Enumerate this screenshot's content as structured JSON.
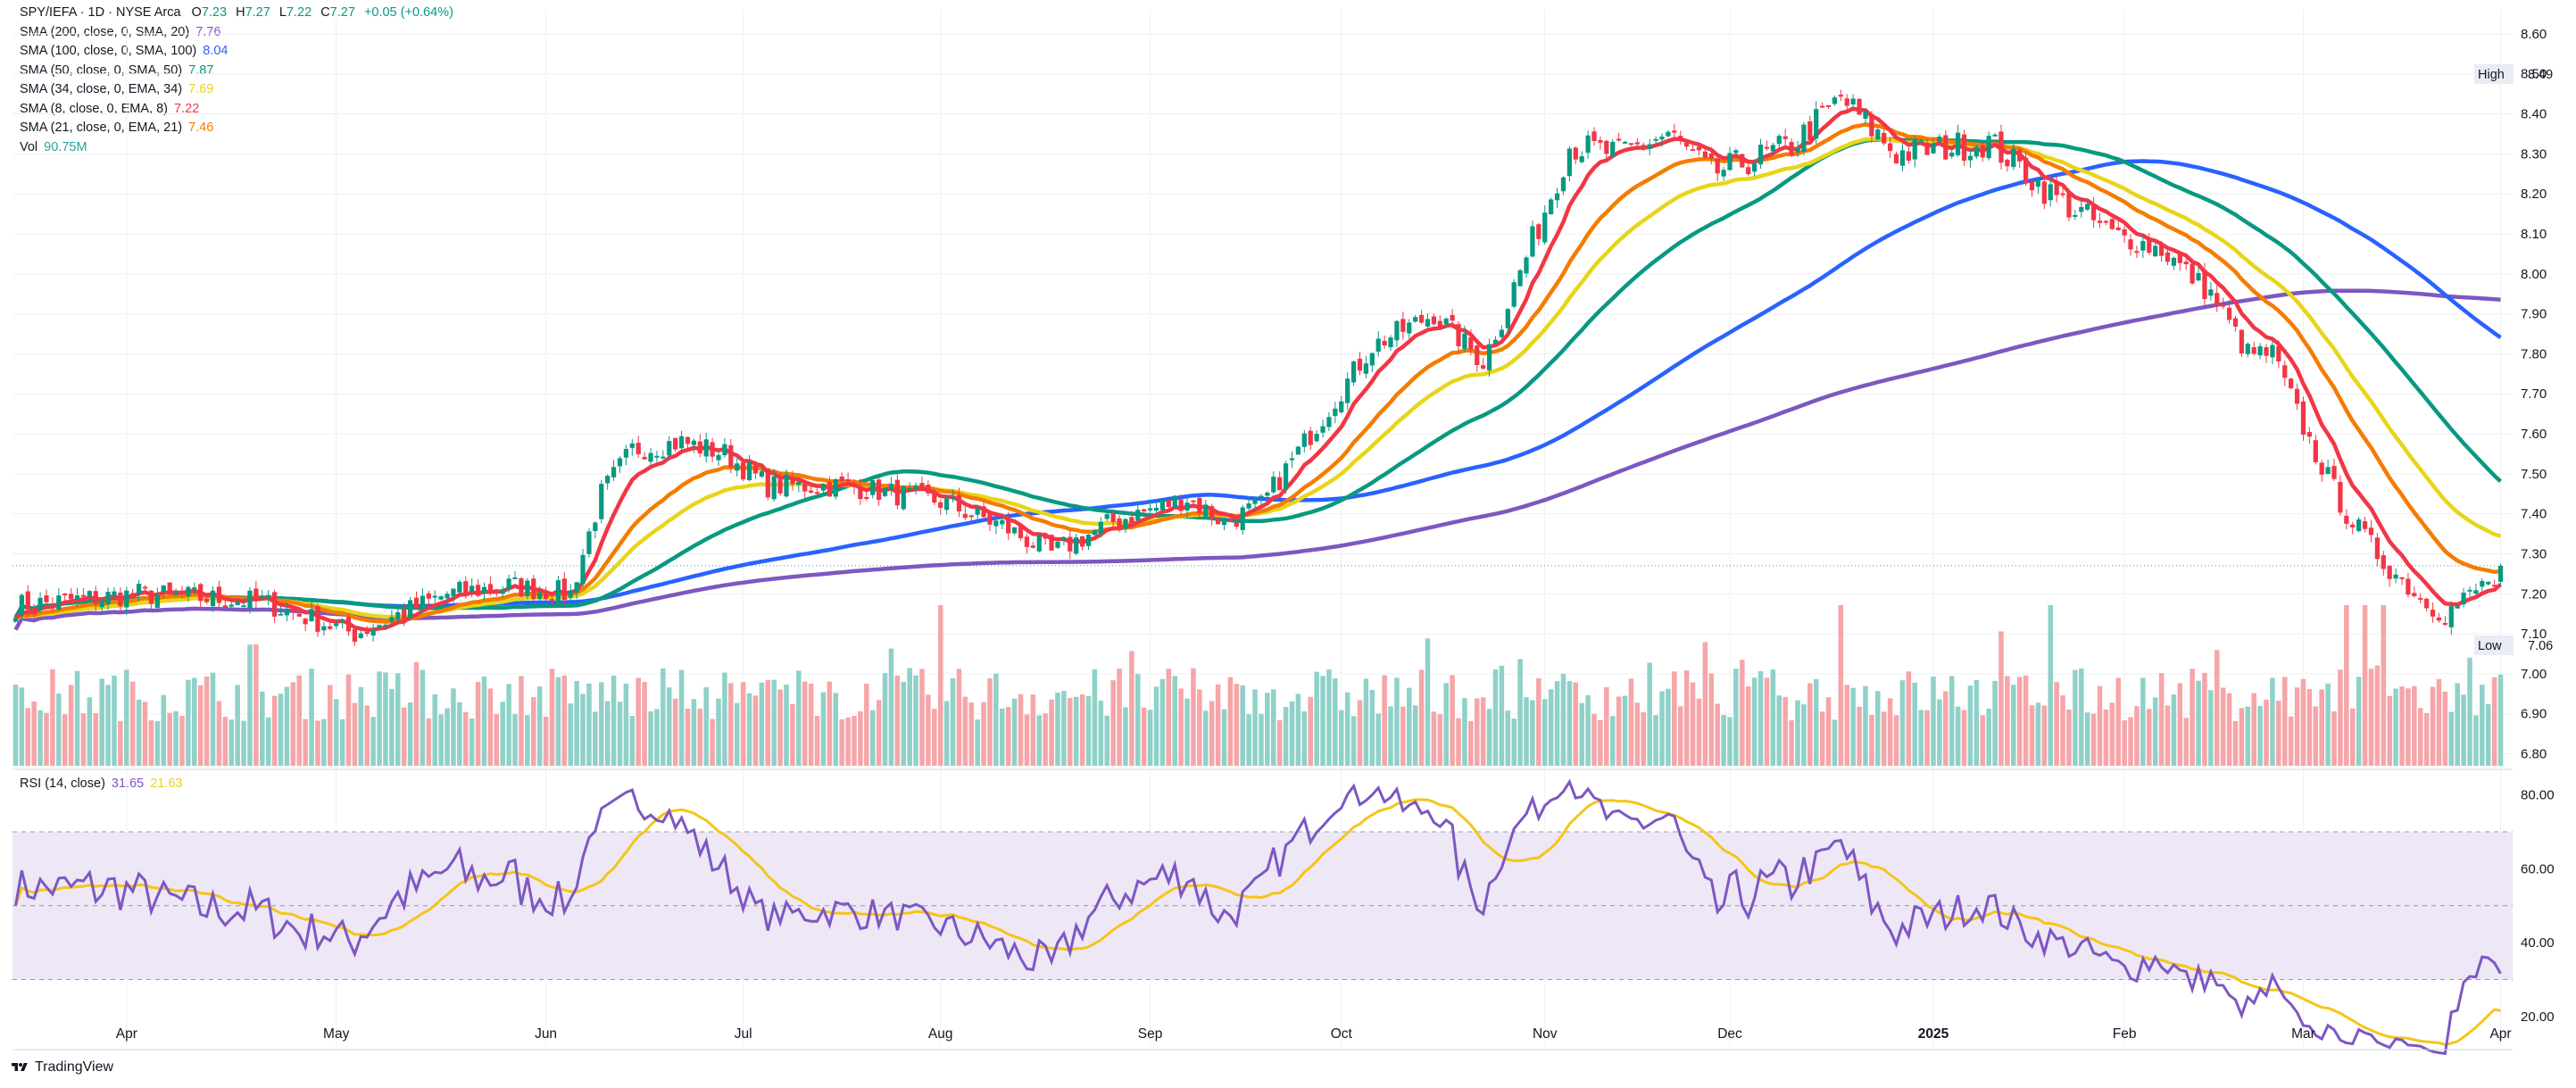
{
  "header": {
    "symbol": "SPY/IEFA · 1D · NYSE Arca",
    "ohlc": [
      {
        "label": "O",
        "value": "7.23"
      },
      {
        "label": "H",
        "value": "7.27"
      },
      {
        "label": "L",
        "value": "7.22"
      },
      {
        "label": "C",
        "value": "7.27"
      }
    ],
    "change": "+0.05 (+0.64%)",
    "up_color": "#089981"
  },
  "indicators": [
    {
      "label": "SMA (200, close, 0, SMA, 20)",
      "value": "7.76",
      "color": "#7e57c2"
    },
    {
      "label": "SMA (100, close, 0, SMA, 100)",
      "value": "8.04",
      "color": "#2962ff"
    },
    {
      "label": "SMA (50, close, 0, SMA, 50)",
      "value": "7.87",
      "color": "#089981"
    },
    {
      "label": "SMA (34, close, 0, EMA, 34)",
      "value": "7.69",
      "color": "#e8d51a"
    },
    {
      "label": "SMA (8, close, 0, EMA, 8)",
      "value": "7.22",
      "color": "#f23645"
    },
    {
      "label": "SMA (21, close, 0, EMA, 21)",
      "value": "7.46",
      "color": "#f57c00"
    },
    {
      "label": "Vol",
      "value": "90.75M",
      "color": "#26a69a"
    }
  ],
  "rsi_legend": {
    "label": "RSI (14, close)",
    "value": "31.65",
    "value_color": "#7e57c2",
    "ma": "21.63",
    "ma_color": "#e8d51a"
  },
  "badges": {
    "high_label": "High",
    "high_value": "8.49",
    "low_label": "Low",
    "low_value": "7.06"
  },
  "footer": {
    "brand": "TradingView"
  },
  "colors": {
    "up": "#089981",
    "down": "#f23645",
    "vol_up": "#8fd1c8",
    "vol_down": "#f6a5a8",
    "rsi_band": "#ede7f6",
    "rsi_line": "#7e57c2",
    "rsi_ma": "#f5c518",
    "grid": "#eef0f3"
  },
  "chart_data": [
    {
      "type": "candlestick",
      "title": "SPY/IEFA · 1D · NYSE Arca",
      "y_ticks": [
        "8.60",
        "8.50",
        "8.40",
        "8.30",
        "8.20",
        "8.10",
        "8.00",
        "7.90",
        "7.80",
        "7.70",
        "7.60",
        "7.50",
        "7.40",
        "7.30",
        "7.20",
        "7.10",
        "7.00",
        "6.90",
        "6.80"
      ],
      "ylim": [
        6.77,
        8.64
      ],
      "x_labels": [
        "Apr",
        "May",
        "Jun",
        "Jul",
        "Aug",
        "Sep",
        "Oct",
        "Nov",
        "Dec",
        "2025",
        "Feb",
        "Mar",
        "Apr"
      ],
      "close_anchors": [
        {
          "t": 0,
          "v": 7.17
        },
        {
          "t": 20,
          "v": 7.2
        },
        {
          "t": 40,
          "v": 7.18
        },
        {
          "t": 55,
          "v": 7.1
        },
        {
          "t": 70,
          "v": 7.2
        },
        {
          "t": 80,
          "v": 7.22
        },
        {
          "t": 90,
          "v": 7.2
        },
        {
          "t": 95,
          "v": 7.45
        },
        {
          "t": 100,
          "v": 7.56
        },
        {
          "t": 108,
          "v": 7.58
        },
        {
          "t": 115,
          "v": 7.55
        },
        {
          "t": 122,
          "v": 7.47
        },
        {
          "t": 135,
          "v": 7.47
        },
        {
          "t": 150,
          "v": 7.43
        },
        {
          "t": 160,
          "v": 7.37
        },
        {
          "t": 168,
          "v": 7.3
        },
        {
          "t": 178,
          "v": 7.38
        },
        {
          "t": 190,
          "v": 7.44
        },
        {
          "t": 196,
          "v": 7.38
        },
        {
          "t": 202,
          "v": 7.42
        },
        {
          "t": 210,
          "v": 7.6
        },
        {
          "t": 220,
          "v": 7.82
        },
        {
          "t": 230,
          "v": 7.9
        },
        {
          "t": 238,
          "v": 7.78
        },
        {
          "t": 246,
          "v": 8.08
        },
        {
          "t": 252,
          "v": 8.32
        },
        {
          "t": 260,
          "v": 8.3
        },
        {
          "t": 268,
          "v": 8.35
        },
        {
          "t": 275,
          "v": 8.25
        },
        {
          "t": 288,
          "v": 8.32
        },
        {
          "t": 296,
          "v": 8.44
        },
        {
          "t": 305,
          "v": 8.3
        },
        {
          "t": 320,
          "v": 8.33
        },
        {
          "t": 330,
          "v": 8.2
        },
        {
          "t": 340,
          "v": 8.1
        },
        {
          "t": 348,
          "v": 8.06
        },
        {
          "t": 356,
          "v": 7.95
        },
        {
          "t": 362,
          "v": 7.8
        },
        {
          "t": 366,
          "v": 7.8
        },
        {
          "t": 372,
          "v": 7.58
        },
        {
          "t": 378,
          "v": 7.4
        },
        {
          "t": 384,
          "v": 7.28
        },
        {
          "t": 390,
          "v": 7.19
        },
        {
          "t": 394,
          "v": 7.15
        },
        {
          "t": 400,
          "v": 7.22
        },
        {
          "t": 403,
          "v": 7.27
        }
      ],
      "series": [
        {
          "name": "SMA (200, close, 0, SMA, 20)",
          "last": 7.76
        },
        {
          "name": "SMA (100, close, 0, SMA, 100)",
          "last": 8.04
        },
        {
          "name": "SMA (50, close, 0, SMA, 50)",
          "last": 7.87
        },
        {
          "name": "SMA (34, close, 0, EMA, 34)",
          "last": 7.69
        },
        {
          "name": "SMA (8, close, 0, EMA, 8)",
          "last": 7.22
        },
        {
          "name": "SMA (21, close, 0, EMA, 21)",
          "last": 7.46
        }
      ],
      "volume": {
        "name": "Vol",
        "last": "90.75M"
      },
      "high": 8.49,
      "low": 7.06
    },
    {
      "type": "line",
      "title": "RSI (14, close)",
      "y_ticks": [
        "80.00",
        "60.00",
        "40.00",
        "20.00"
      ],
      "ylim": [
        12,
        85
      ],
      "bands": [
        70,
        50,
        30
      ],
      "series": [
        {
          "name": "RSI (14, close)",
          "last": 31.65
        },
        {
          "name": "",
          "last": 21.63
        }
      ]
    }
  ]
}
